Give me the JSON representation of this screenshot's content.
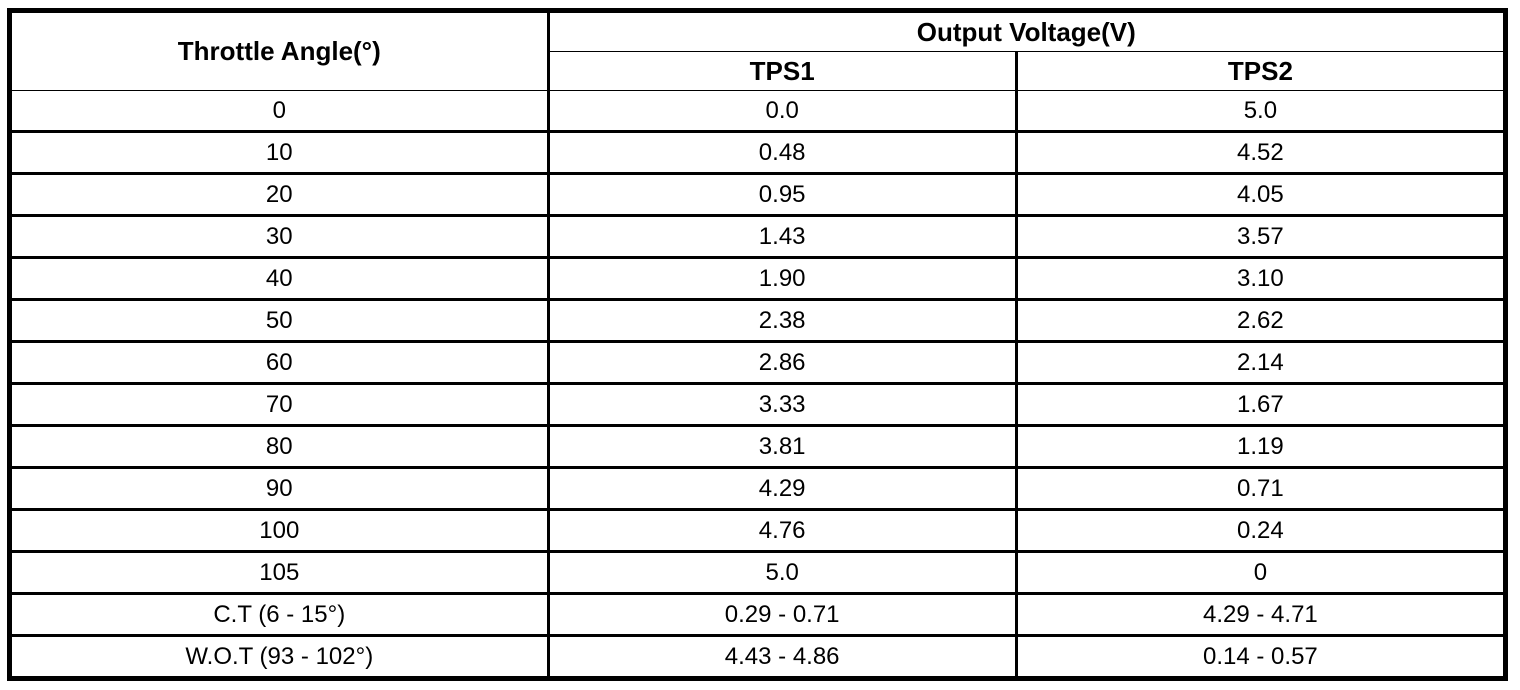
{
  "table": {
    "headers": {
      "throttle_angle": "Throttle Angle(°)",
      "output_voltage": "Output Voltage(V)",
      "tps1": "TPS1",
      "tps2": "TPS2"
    },
    "rows": [
      {
        "angle": "0",
        "tps1": "0.0",
        "tps2": "5.0"
      },
      {
        "angle": "10",
        "tps1": "0.48",
        "tps2": "4.52"
      },
      {
        "angle": "20",
        "tps1": "0.95",
        "tps2": "4.05"
      },
      {
        "angle": "30",
        "tps1": "1.43",
        "tps2": "3.57"
      },
      {
        "angle": "40",
        "tps1": "1.90",
        "tps2": "3.10"
      },
      {
        "angle": "50",
        "tps1": "2.38",
        "tps2": "2.62"
      },
      {
        "angle": "60",
        "tps1": "2.86",
        "tps2": "2.14"
      },
      {
        "angle": "70",
        "tps1": "3.33",
        "tps2": "1.67"
      },
      {
        "angle": "80",
        "tps1": "3.81",
        "tps2": "1.19"
      },
      {
        "angle": "90",
        "tps1": "4.29",
        "tps2": "0.71"
      },
      {
        "angle": "100",
        "tps1": "4.76",
        "tps2": "0.24"
      },
      {
        "angle": "105",
        "tps1": "5.0",
        "tps2": "0"
      },
      {
        "angle": "C.T (6 - 15°)",
        "tps1": "0.29 - 0.71",
        "tps2": "4.29 - 4.71"
      },
      {
        "angle": "W.O.T (93 - 102°)",
        "tps1": "4.43 - 4.86",
        "tps2": "0.14 - 0.57"
      }
    ],
    "colors": {
      "border": "#000000",
      "background": "#ffffff",
      "text": "#000000"
    }
  }
}
